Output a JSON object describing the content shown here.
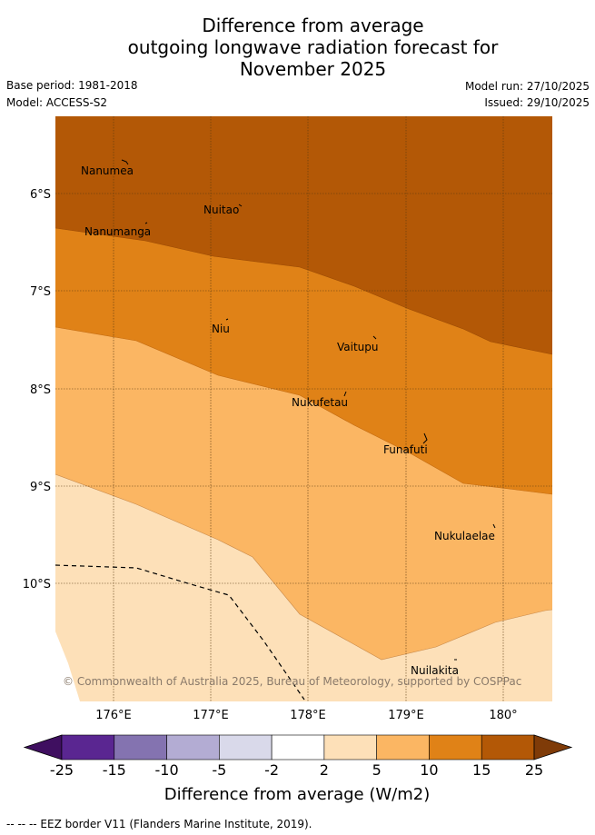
{
  "title": {
    "line1": "Difference from average",
    "line2": "outgoing longwave radiation forecast for",
    "line3": "November 2025"
  },
  "meta": {
    "base_period": "Base period: 1981-2018",
    "model": "Model: ACCESS-S2",
    "model_run": "Model run: 27/10/2025",
    "issued": "Issued: 29/10/2025"
  },
  "map": {
    "lon_labels": [
      "176°E",
      "177°E",
      "178°E",
      "179°E",
      "180°"
    ],
    "lat_labels": [
      "6°S",
      "7°S",
      "8°S",
      "9°S",
      "10°S"
    ],
    "places": [
      "Nanumea",
      "Nuitao",
      "Nanumanga",
      "Niu",
      "Vaitupu",
      "Nukufetau",
      "Funafuti",
      "Nukulaelae",
      "Nuilakita"
    ],
    "copyright": "© Commonwealth of Australia 2025, Bureau of Meteorology, supported by COSPPac"
  },
  "colorbar": {
    "ticks": [
      "-25",
      "-15",
      "-10",
      "-5",
      "-2",
      "2",
      "5",
      "10",
      "15",
      "25"
    ],
    "colors": [
      "#3f0f60",
      "#5a2691",
      "#8473b0",
      "#b3acd3",
      "#d9d9ea",
      "#ffffff",
      "#fde0b8",
      "#fbb663",
      "#e08217",
      "#b35806",
      "#7f3b08"
    ],
    "title": "Difference from average (W/m2)"
  },
  "footer": "--  --  -- EEZ border V11 (Flanders Marine Institute, 2019)."
}
